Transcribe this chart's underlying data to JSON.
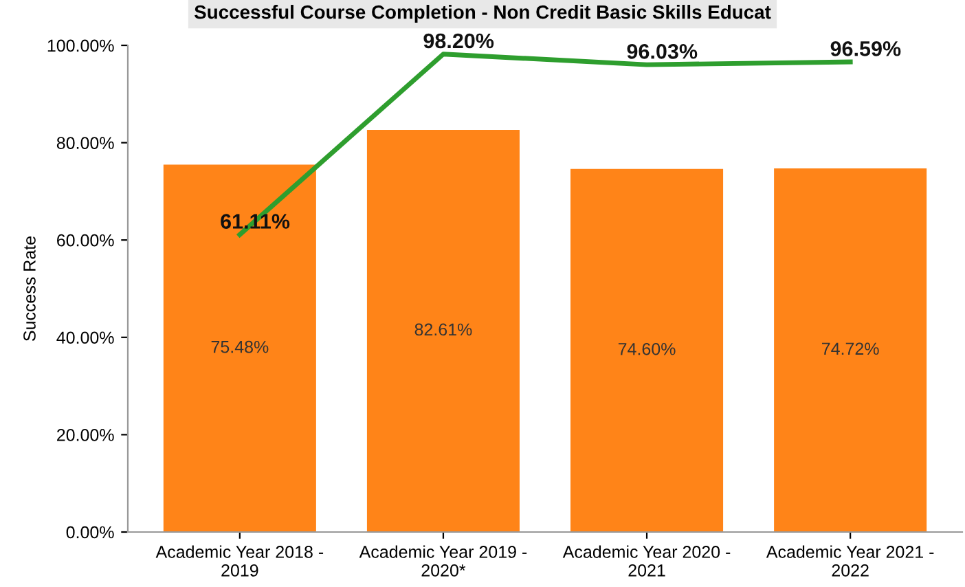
{
  "chart_data": {
    "type": "bar",
    "title": "Successful Course Completion - Non Credit Basic Skills Educat",
    "ylabel": "Success Rate",
    "categories": [
      "Academic Year 2018 -\n2019",
      "Academic Year 2019 -\n2020*",
      "Academic Year 2020 -\n2021",
      "Academic Year 2021 -\n2022"
    ],
    "series": [
      {
        "color": "#ff8418",
        "values": [
          75.48,
          82.61,
          74.6,
          74.72
        ],
        "value_labels": [
          "75.48%",
          "82.61%",
          "74.60%",
          "74.72%"
        ]
      },
      {
        "type": "line",
        "color": "#2e9e2e",
        "values": [
          61.11,
          98.2,
          96.03,
          96.59
        ],
        "value_labels": [
          "61.11%",
          "98.20%",
          "96.03%",
          "96.59%"
        ]
      }
    ],
    "ylim": [
      0,
      100
    ],
    "yticks": [
      {
        "value": 0,
        "label": "0.00%"
      },
      {
        "value": 20,
        "label": "20.00%"
      },
      {
        "value": 40,
        "label": "40.00%"
      },
      {
        "value": 60,
        "label": "60.00%"
      },
      {
        "value": 80,
        "label": "80.00%"
      },
      {
        "value": 100,
        "label": "100.00%"
      }
    ],
    "grid": false
  }
}
